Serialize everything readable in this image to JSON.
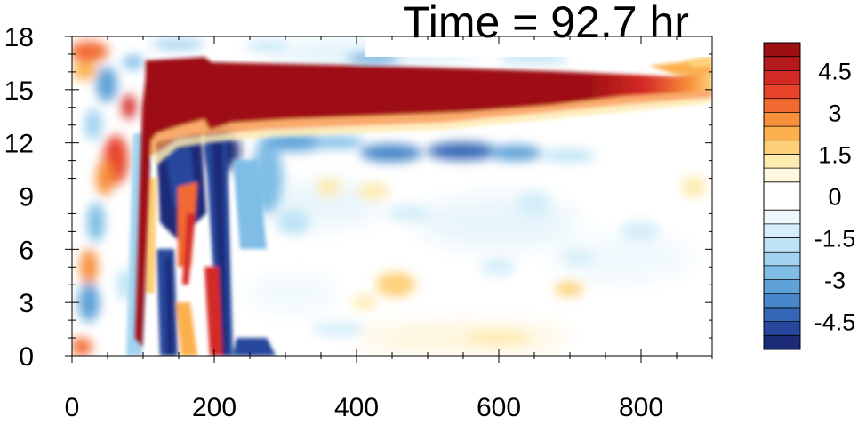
{
  "chart_data": {
    "type": "heatmap",
    "title": "Time = 92.7 hr",
    "xlabel": "",
    "ylabel": "",
    "xlim": [
      0,
      900
    ],
    "ylim": [
      0,
      18
    ],
    "x_ticks": [
      0,
      200,
      400,
      600,
      800
    ],
    "y_ticks": [
      0,
      3,
      6,
      9,
      12,
      15,
      18
    ],
    "colorbar": {
      "placement": "right",
      "levels": [
        -5.5,
        -5,
        -4.5,
        -4,
        -3.5,
        -3,
        -2.5,
        -2,
        -1.5,
        -1,
        -0.5,
        0,
        0.5,
        1,
        1.5,
        2,
        2.5,
        3,
        3.5,
        4,
        4.5,
        5,
        5.5
      ],
      "tick_labels": [
        "4.5",
        "3",
        "1.5",
        "0",
        "-1.5",
        "-3",
        "-4.5"
      ],
      "tick_values": [
        4.5,
        3,
        1.5,
        0,
        -1.5,
        -3,
        -4.5
      ],
      "colors": [
        "#9e0f12",
        "#b51a1c",
        "#d42a26",
        "#e8432b",
        "#f26a32",
        "#f88f3b",
        "#fcb04e",
        "#fdd079",
        "#feebb0",
        "#fff7de",
        "#ffffff",
        "#ffffff",
        "#eef8fd",
        "#d6eef9",
        "#bde3f5",
        "#a1d3ef",
        "#7fbde6",
        "#5ea2d8",
        "#4686c9",
        "#3467b6",
        "#27479c",
        "#1b2b78"
      ]
    },
    "features": [
      {
        "name": "upper positive layer",
        "x_range": [
          100,
          900
        ],
        "y_range": [
          13,
          17
        ],
        "peak": 5.5
      },
      {
        "name": "negative band below layer",
        "x_range": [
          110,
          640
        ],
        "y_range": [
          10.5,
          12.5
        ],
        "peak": -4.5
      },
      {
        "name": "leading tilted edge",
        "x_range": [
          90,
          240
        ],
        "y_range": [
          0,
          17
        ],
        "peak": -5.5
      }
    ]
  }
}
